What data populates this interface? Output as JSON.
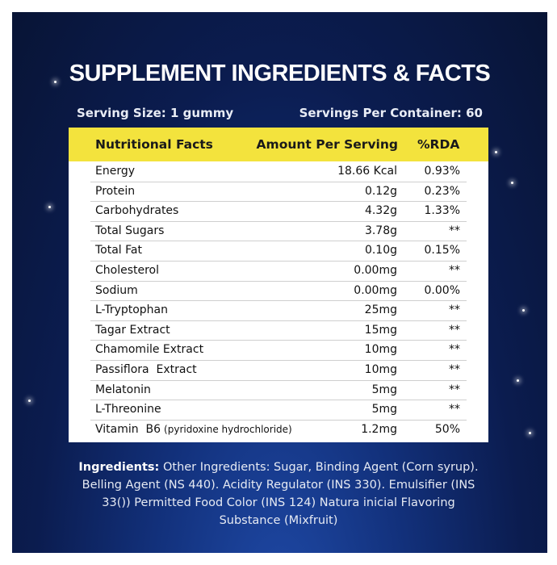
{
  "header": {
    "title": "SUPPLEMENT INGREDIENTS & FACTS",
    "serving_size": "Serving Size: 1 gummy",
    "servings_per_container": "Servings Per Container: 60"
  },
  "table": {
    "columns": [
      "Nutritional Facts",
      "Amount Per Serving",
      "%RDA"
    ],
    "rows": [
      {
        "name": "Energy",
        "amount": "18.66 Kcal",
        "rda": "0.93%"
      },
      {
        "name": "Protein",
        "amount": "0.12g",
        "rda": "0.23%"
      },
      {
        "name": "Carbohydrates",
        "amount": "4.32g",
        "rda": "1.33%"
      },
      {
        "name": "Total Sugars",
        "amount": "3.78g",
        "rda": "**"
      },
      {
        "name": "Total Fat",
        "amount": "0.10g",
        "rda": "0.15%"
      },
      {
        "name": "Cholesterol",
        "amount": "0.00mg",
        "rda": "**"
      },
      {
        "name": "Sodium",
        "amount": "0.00mg",
        "rda": "0.00%"
      },
      {
        "name": "L-Tryptophan",
        "amount": "25mg",
        "rda": "**"
      },
      {
        "name": "Tagar Extract",
        "amount": "15mg",
        "rda": "**"
      },
      {
        "name": "Chamomile Extract",
        "amount": "10mg",
        "rda": "**"
      },
      {
        "name": "Passiflora  Extract",
        "amount": "10mg",
        "rda": "**"
      },
      {
        "name": "Melatonin",
        "amount": "5mg",
        "rda": "**"
      },
      {
        "name": "L-Threonine",
        "amount": "5mg",
        "rda": "**"
      },
      {
        "name": "Vitamin  B6",
        "note": "(pyridoxine hydrochloride)",
        "amount": "1.2mg",
        "rda": "50%"
      }
    ]
  },
  "ingredients": {
    "label": "Ingredients:",
    "text": "Other Ingredients: Sugar, Binding Agent (Corn syrup). Belling Agent (NS 440). Acidity Regulator (INS 330). Emulsifier (INS 33()) Permitted Food Color (INS 124) Natura inicial Flavoring Substance (Mixfruit)"
  }
}
